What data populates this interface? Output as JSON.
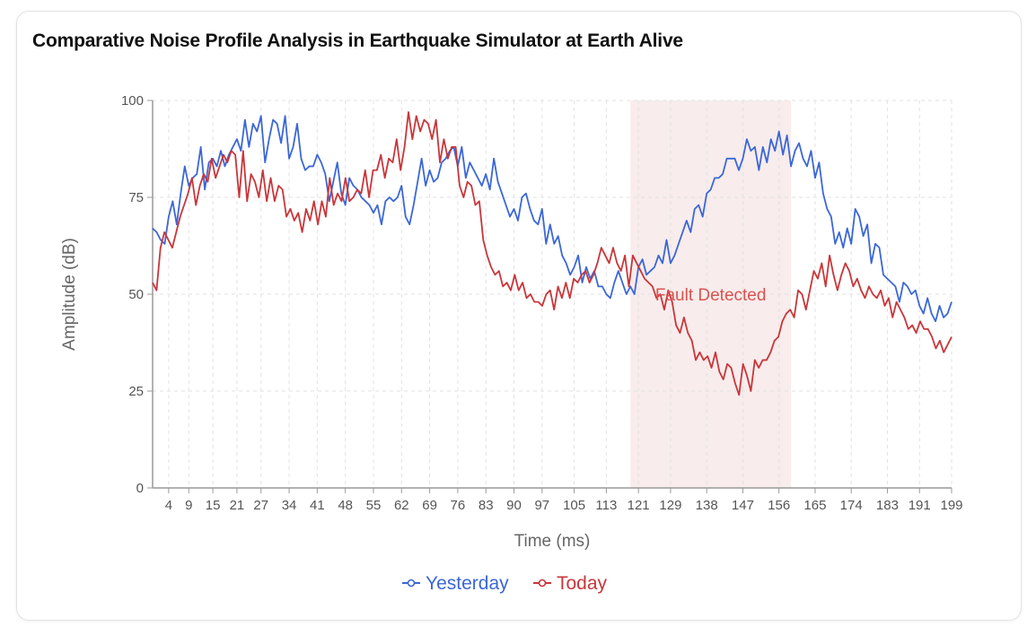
{
  "title": "Comparative Noise Profile Analysis in Earthquake Simulator at Earth Alive",
  "chart_data": {
    "type": "line",
    "title": "Comparative Noise Profile Analysis in Earthquake Simulator at Earth Alive",
    "xlabel": "Time (ms)",
    "ylabel": "Amplitude (dB)",
    "x_range": [
      0,
      199
    ],
    "ylim": [
      0,
      100
    ],
    "y_ticks": [
      0,
      25,
      50,
      75,
      100
    ],
    "x_tick_labels": [
      4,
      9,
      15,
      21,
      27,
      34,
      41,
      48,
      55,
      62,
      69,
      76,
      83,
      90,
      97,
      105,
      113,
      121,
      129,
      138,
      147,
      156,
      165,
      174,
      183,
      191,
      199
    ],
    "grid": true,
    "legend_position": "bottom",
    "annotation": {
      "label": "Fault Detected",
      "x_start": 119,
      "x_end": 159,
      "color": "#f8ecec",
      "text_color": "#d9534f"
    },
    "series": [
      {
        "name": "Yesterday",
        "color": "#3b67d6",
        "values": [
          67,
          66,
          64,
          63,
          70,
          74,
          68,
          76,
          83,
          78,
          80,
          81,
          88,
          77,
          84,
          85,
          83,
          87,
          83,
          86,
          88,
          90,
          87,
          95,
          88,
          94,
          92,
          96,
          84,
          90,
          95,
          94,
          89,
          96,
          85,
          88,
          94,
          85,
          82,
          83,
          83,
          86,
          84,
          81,
          74,
          79,
          84,
          76,
          73,
          80,
          78,
          77,
          75,
          74,
          73,
          71,
          73,
          68,
          74,
          75,
          74,
          75,
          78,
          70,
          68,
          73,
          79,
          85,
          78,
          82,
          79,
          80,
          84,
          85,
          87,
          88,
          83,
          88,
          80,
          84,
          82,
          80,
          78,
          81,
          77,
          85,
          79,
          76,
          73,
          70,
          72,
          69,
          75,
          76,
          72,
          69,
          68,
          72,
          63,
          68,
          63,
          65,
          60,
          58,
          55,
          57,
          60,
          53,
          57,
          54,
          56,
          52,
          52,
          50,
          49,
          53,
          56,
          53,
          50,
          52,
          50,
          57,
          59,
          55,
          56,
          57,
          60,
          58,
          64,
          58,
          60,
          63,
          66,
          69,
          66,
          72,
          73,
          70,
          76,
          77,
          80,
          80,
          81,
          85,
          85,
          85,
          82,
          85,
          90,
          87,
          88,
          82,
          88,
          84,
          90,
          87,
          92,
          86,
          91,
          83,
          87,
          89,
          85,
          83,
          87,
          80,
          84,
          76,
          72,
          70,
          63,
          66,
          62,
          67,
          63,
          72,
          70,
          65,
          68,
          58,
          63,
          62,
          55,
          54,
          53,
          52,
          48,
          53,
          52,
          50,
          51,
          47,
          45,
          49,
          45,
          43,
          47,
          44,
          45,
          48
        ]
      },
      {
        "name": "Today",
        "color": "#c9363a",
        "values": [
          53,
          51,
          62,
          66,
          64,
          62,
          66,
          70,
          73,
          76,
          80,
          73,
          78,
          81,
          79,
          85,
          80,
          83,
          86,
          84,
          87,
          86,
          75,
          87,
          74,
          81,
          79,
          75,
          82,
          74,
          80,
          74,
          78,
          77,
          70,
          72,
          69,
          71,
          66,
          72,
          69,
          74,
          68,
          74,
          70,
          80,
          73,
          76,
          74,
          80,
          74,
          75,
          77,
          76,
          82,
          75,
          82,
          82,
          86,
          80,
          85,
          84,
          90,
          82,
          88,
          97,
          90,
          96,
          92,
          95,
          94,
          90,
          95,
          84,
          90,
          85,
          88,
          88,
          78,
          75,
          79,
          78,
          73,
          74,
          64,
          60,
          57,
          55,
          56,
          52,
          53,
          51,
          55,
          51,
          53,
          49,
          50,
          48,
          48,
          47,
          50,
          51,
          46,
          52,
          49,
          53,
          49,
          54,
          53,
          55,
          56,
          53,
          55,
          58,
          62,
          60,
          58,
          62,
          58,
          56,
          60,
          52,
          60,
          58,
          56,
          54,
          53,
          52,
          49,
          50,
          46,
          51,
          48,
          42,
          40,
          44,
          40,
          38,
          33,
          35,
          33,
          34,
          31,
          35,
          30,
          28,
          32,
          31,
          27,
          24,
          32,
          29,
          25,
          33,
          31,
          33,
          33,
          35,
          38,
          39,
          43,
          45,
          46,
          44,
          51,
          50,
          46,
          51,
          56,
          54,
          58,
          52,
          60,
          55,
          51,
          55,
          58,
          56,
          52,
          54,
          51,
          49,
          52,
          50,
          49,
          51,
          47,
          49,
          44,
          48,
          46,
          44,
          41,
          42,
          40,
          43,
          41,
          41,
          39,
          36,
          38,
          35,
          37,
          39
        ]
      }
    ]
  }
}
